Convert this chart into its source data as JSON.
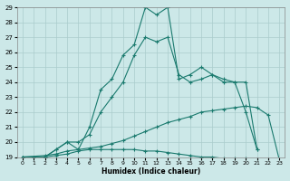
{
  "xlabel": "Humidex (Indice chaleur)",
  "background_color": "#cce8e8",
  "grid_color": "#aacccc",
  "line_color": "#1a7a6e",
  "xlim": [
    -0.5,
    23.5
  ],
  "ylim": [
    19,
    29
  ],
  "yticks": [
    19,
    20,
    21,
    22,
    23,
    24,
    25,
    26,
    27,
    28,
    29
  ],
  "xticks": [
    0,
    1,
    2,
    3,
    4,
    5,
    6,
    7,
    8,
    9,
    10,
    11,
    12,
    13,
    14,
    15,
    16,
    17,
    18,
    19,
    20,
    21,
    22,
    23
  ],
  "series": [
    {
      "x": [
        0,
        2,
        3,
        4,
        5,
        6,
        7,
        8,
        9,
        10,
        11,
        12,
        13,
        14,
        15,
        16,
        17,
        18,
        19,
        20,
        21
      ],
      "y": [
        19,
        19,
        19.5,
        20,
        19.5,
        21.0,
        23.5,
        24.2,
        25.8,
        26.5,
        29,
        28.5,
        29,
        24.2,
        24.5,
        25,
        24.5,
        24,
        24,
        24,
        19.5
      ]
    },
    {
      "x": [
        0,
        2,
        3,
        4,
        5,
        6,
        7,
        8,
        9,
        10,
        11,
        12,
        13,
        14,
        15,
        16,
        17,
        18,
        19,
        20,
        21
      ],
      "y": [
        19,
        19,
        19.5,
        20,
        20,
        20.5,
        22,
        23,
        24,
        25.8,
        27,
        26.7,
        27,
        24.5,
        24,
        24.2,
        24.5,
        24.2,
        24,
        22,
        19.5
      ]
    },
    {
      "x": [
        0,
        2,
        3,
        4,
        5,
        6,
        7,
        8,
        9,
        10,
        11,
        12,
        13,
        14,
        15,
        16,
        17,
        18,
        19,
        20,
        21,
        22,
        23
      ],
      "y": [
        19,
        19.1,
        19.2,
        19.4,
        19.5,
        19.6,
        19.7,
        19.9,
        20.1,
        20.4,
        20.7,
        21.0,
        21.3,
        21.5,
        21.7,
        22.0,
        22.1,
        22.2,
        22.3,
        22.4,
        22.3,
        21.8,
        18.8
      ]
    },
    {
      "x": [
        0,
        1,
        2,
        3,
        4,
        5,
        6,
        7,
        8,
        9,
        10,
        11,
        12,
        13,
        14,
        15,
        16,
        17,
        18,
        19,
        20,
        21,
        22,
        23
      ],
      "y": [
        19,
        19,
        19,
        19.1,
        19.2,
        19.4,
        19.5,
        19.5,
        19.5,
        19.5,
        19.5,
        19.4,
        19.4,
        19.3,
        19.2,
        19.1,
        19.0,
        19.0,
        18.9,
        18.9,
        18.9,
        18.8,
        18.8,
        18.8
      ]
    }
  ]
}
